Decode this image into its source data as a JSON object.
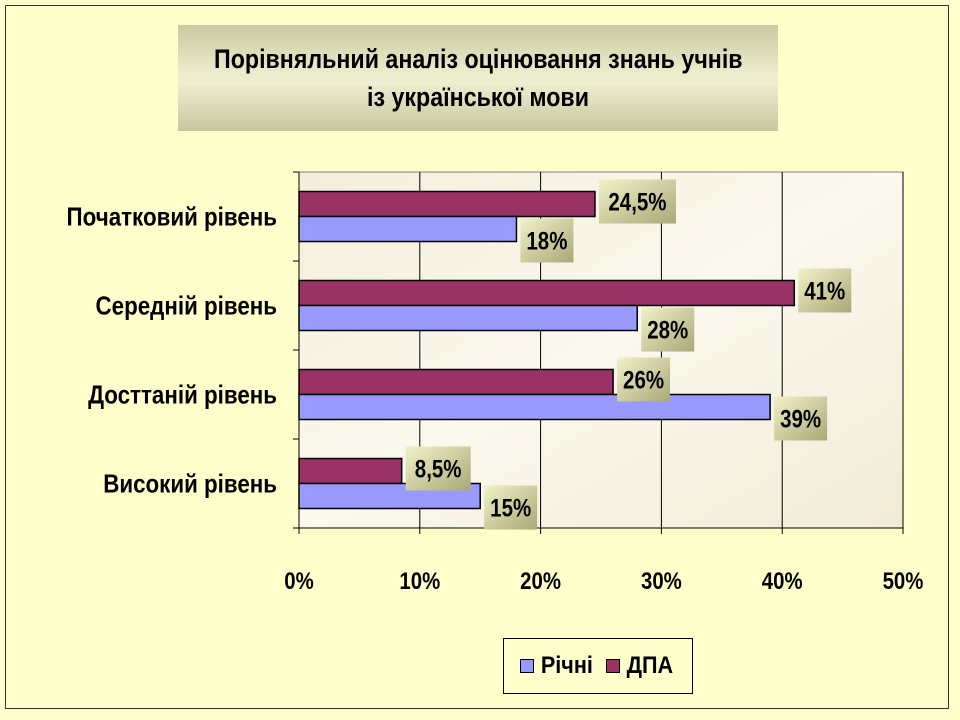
{
  "chart_data": {
    "type": "bar",
    "orientation": "horizontal",
    "title": "Порівняльний аналіз оцінювання знань учнів",
    "subtitle": "із української мови",
    "categories": [
      "Початковий рівень",
      "Середній рівень",
      "Досттаній рівень",
      "Високий рівень"
    ],
    "series": [
      {
        "name": "ДПА",
        "values": [
          24.5,
          41,
          26,
          8.5
        ],
        "labels": [
          "24,5%",
          "41%",
          "26%",
          "8,5%"
        ],
        "color": "#993366"
      },
      {
        "name": "Річні",
        "values": [
          18,
          28,
          39,
          15
        ],
        "labels": [
          "18%",
          "28%",
          "39%",
          "15%"
        ],
        "color": "#9999ff"
      }
    ],
    "x_ticks": [
      "0%",
      "10%",
      "20%",
      "30%",
      "40%",
      "50%"
    ],
    "xlim": [
      0,
      50
    ],
    "grid": true,
    "legend_position": "bottom",
    "legend": [
      "Річні",
      "ДПА"
    ]
  }
}
